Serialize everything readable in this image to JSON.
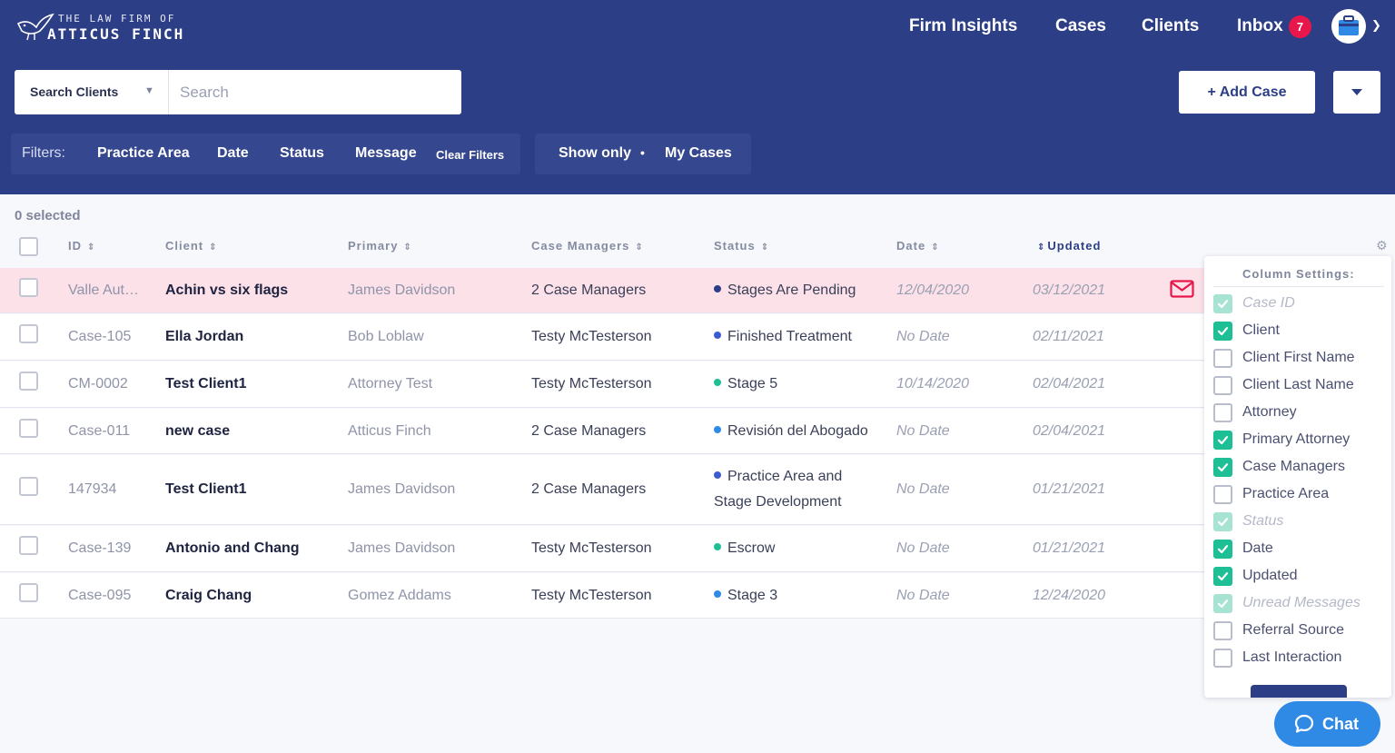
{
  "brand": {
    "line1": "THE LAW FIRM OF",
    "line2": "ATTICUS FINCH"
  },
  "nav": {
    "insights": "Firm Insights",
    "cases": "Cases",
    "clients": "Clients",
    "inbox": "Inbox",
    "inbox_count": "7"
  },
  "search": {
    "select_label": "Search Clients",
    "placeholder": "Search",
    "value": ""
  },
  "actions": {
    "add_case": "+ Add Case"
  },
  "filters": {
    "label": "Filters:",
    "practice_area": "Practice Area",
    "date": "Date",
    "status": "Status",
    "message": "Message",
    "clear": "Clear Filters"
  },
  "show_only": {
    "label": "Show only",
    "value": "My Cases"
  },
  "table": {
    "selected_count": "0 selected",
    "headers": {
      "id": "ID",
      "client": "Client",
      "primary": "Primary",
      "managers": "Case Managers",
      "status": "Status",
      "date": "Date",
      "updated": "Updated"
    },
    "rows": [
      {
        "id": "Valle Aut…",
        "client": "Achin vs six flags",
        "primary": "James Davidson",
        "managers": "2 Case Managers",
        "status": "Stages Are Pending",
        "status_color": "#2c3e86",
        "date": "12/04/2020",
        "updated": "03/12/2021",
        "highlight": true,
        "has_message": true
      },
      {
        "id": "Case-105",
        "client": "Ella Jordan",
        "primary": "Bob Loblaw",
        "managers": "Testy McTesterson",
        "status": "Finished Treatment",
        "status_color": "#3d5bd1",
        "date": "No Date",
        "updated": "02/11/2021"
      },
      {
        "id": "CM-0002",
        "client": "Test Client1",
        "primary": "Attorney Test",
        "managers": "Testy McTesterson",
        "status": "Stage 5",
        "status_color": "#1fbf95",
        "date": "10/14/2020",
        "updated": "02/04/2021"
      },
      {
        "id": "Case-011",
        "client": "new case",
        "primary": "Atticus Finch",
        "managers": "2 Case Managers",
        "status": "Revisión del Abogado",
        "status_color": "#2f8ae6",
        "date": "No Date",
        "updated": "02/04/2021"
      },
      {
        "id": "147934",
        "client": "Test Client1",
        "primary": "James Davidson",
        "managers": "2 Case Managers",
        "status_line1": "Practice Area and",
        "status_line2": "Stage Development",
        "status_color": "#3d5bd1",
        "date": "No Date",
        "updated": "01/21/2021"
      },
      {
        "id": "Case-139",
        "client": "Antonio and Chang",
        "primary": "James Davidson",
        "managers": "Testy McTesterson",
        "status": "Escrow",
        "status_color": "#1fbf95",
        "date": "No Date",
        "updated": "01/21/2021"
      },
      {
        "id": "Case-095",
        "client": "Craig Chang",
        "primary": "Gomez Addams",
        "managers": "Testy McTesterson",
        "status": "Stage 3",
        "status_color": "#2f8ae6",
        "date": "No Date",
        "updated": "12/24/2020"
      }
    ]
  },
  "column_settings": {
    "title": "Column Settings:",
    "items": [
      {
        "label": "Case ID",
        "state": "disabled"
      },
      {
        "label": "Client",
        "state": "checked"
      },
      {
        "label": "Client First Name",
        "state": "unchecked"
      },
      {
        "label": "Client Last Name",
        "state": "unchecked"
      },
      {
        "label": "Attorney",
        "state": "unchecked"
      },
      {
        "label": "Primary Attorney",
        "state": "checked"
      },
      {
        "label": "Case Managers",
        "state": "checked"
      },
      {
        "label": "Practice Area",
        "state": "unchecked"
      },
      {
        "label": "Status",
        "state": "disabled"
      },
      {
        "label": "Date",
        "state": "checked"
      },
      {
        "label": "Updated",
        "state": "checked"
      },
      {
        "label": "Unread Messages",
        "state": "disabled"
      },
      {
        "label": "Referral Source",
        "state": "unchecked"
      },
      {
        "label": "Last Interaction",
        "state": "unchecked"
      }
    ]
  },
  "chat": {
    "label": "Chat"
  },
  "colors": {
    "header": "#2c3e86",
    "accent_green": "#1fbf95",
    "badge_red": "#e8174b",
    "highlight_row": "#fde1e9",
    "chat_blue": "#2f8ae6"
  }
}
